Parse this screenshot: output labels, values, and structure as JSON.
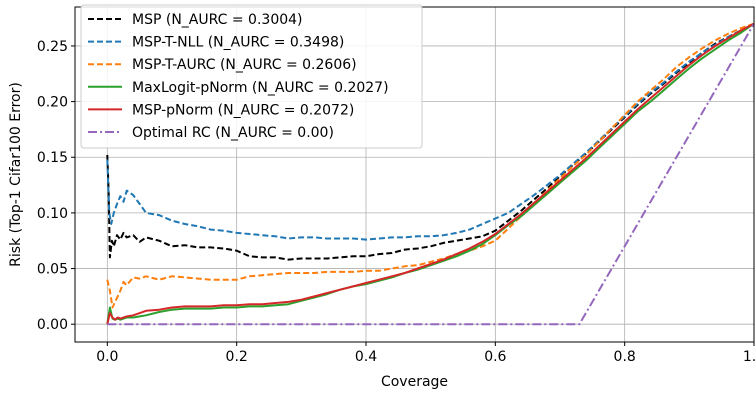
{
  "chart_data": {
    "type": "line",
    "title": "",
    "xlabel": "Coverage",
    "ylabel": "Risk (Top-1 Cifar100 Error)",
    "xlim": [
      -0.05,
      1.0
    ],
    "ylim": [
      -0.016,
      0.285
    ],
    "xticks": [
      0.0,
      0.2,
      0.4,
      0.6,
      0.8,
      1.0
    ],
    "xtick_labels": [
      "0.0",
      "0.2",
      "0.4",
      "0.6",
      "0.8",
      "1.0"
    ],
    "yticks": [
      0.0,
      0.05,
      0.1,
      0.15,
      0.2,
      0.25
    ],
    "ytick_labels": [
      "0.00",
      "0.05",
      "0.10",
      "0.15",
      "0.20",
      "0.25"
    ],
    "grid": true,
    "legend_position": "top-left",
    "series": [
      {
        "name": "MSP (N_AURC = 0.3004)",
        "color": "#000000",
        "dash": "dashed",
        "points": [
          [
            0.0,
            0.152
          ],
          [
            0.002,
            0.12
          ],
          [
            0.004,
            0.06
          ],
          [
            0.007,
            0.075
          ],
          [
            0.01,
            0.07
          ],
          [
            0.015,
            0.08
          ],
          [
            0.02,
            0.076
          ],
          [
            0.025,
            0.082
          ],
          [
            0.03,
            0.078
          ],
          [
            0.04,
            0.08
          ],
          [
            0.05,
            0.074
          ],
          [
            0.06,
            0.078
          ],
          [
            0.08,
            0.075
          ],
          [
            0.1,
            0.07
          ],
          [
            0.12,
            0.071
          ],
          [
            0.14,
            0.069
          ],
          [
            0.16,
            0.069
          ],
          [
            0.18,
            0.068
          ],
          [
            0.2,
            0.066
          ],
          [
            0.22,
            0.061
          ],
          [
            0.24,
            0.06
          ],
          [
            0.26,
            0.06
          ],
          [
            0.28,
            0.058
          ],
          [
            0.3,
            0.059
          ],
          [
            0.32,
            0.059
          ],
          [
            0.34,
            0.059
          ],
          [
            0.36,
            0.06
          ],
          [
            0.38,
            0.061
          ],
          [
            0.4,
            0.061
          ],
          [
            0.42,
            0.063
          ],
          [
            0.44,
            0.064
          ],
          [
            0.46,
            0.067
          ],
          [
            0.48,
            0.068
          ],
          [
            0.5,
            0.07
          ],
          [
            0.52,
            0.073
          ],
          [
            0.54,
            0.075
          ],
          [
            0.56,
            0.077
          ],
          [
            0.58,
            0.079
          ],
          [
            0.6,
            0.084
          ],
          [
            0.62,
            0.093
          ],
          [
            0.64,
            0.102
          ],
          [
            0.66,
            0.112
          ],
          [
            0.68,
            0.122
          ],
          [
            0.7,
            0.133
          ],
          [
            0.72,
            0.143
          ],
          [
            0.74,
            0.153
          ],
          [
            0.76,
            0.164
          ],
          [
            0.78,
            0.175
          ],
          [
            0.8,
            0.186
          ],
          [
            0.82,
            0.197
          ],
          [
            0.84,
            0.207
          ],
          [
            0.86,
            0.216
          ],
          [
            0.88,
            0.226
          ],
          [
            0.9,
            0.235
          ],
          [
            0.92,
            0.244
          ],
          [
            0.94,
            0.252
          ],
          [
            0.96,
            0.258
          ],
          [
            0.98,
            0.264
          ],
          [
            1.0,
            0.27
          ]
        ]
      },
      {
        "name": "MSP-T-NLL (N_AURC = 0.3498)",
        "color": "#1f77b4",
        "dash": "dashed",
        "points": [
          [
            0.0,
            0.148
          ],
          [
            0.003,
            0.1
          ],
          [
            0.006,
            0.09
          ],
          [
            0.01,
            0.1
          ],
          [
            0.015,
            0.108
          ],
          [
            0.02,
            0.115
          ],
          [
            0.025,
            0.11
          ],
          [
            0.03,
            0.12
          ],
          [
            0.04,
            0.116
          ],
          [
            0.05,
            0.108
          ],
          [
            0.06,
            0.1
          ],
          [
            0.08,
            0.098
          ],
          [
            0.1,
            0.093
          ],
          [
            0.12,
            0.09
          ],
          [
            0.14,
            0.088
          ],
          [
            0.16,
            0.085
          ],
          [
            0.18,
            0.084
          ],
          [
            0.2,
            0.082
          ],
          [
            0.22,
            0.081
          ],
          [
            0.24,
            0.08
          ],
          [
            0.26,
            0.079
          ],
          [
            0.28,
            0.077
          ],
          [
            0.3,
            0.078
          ],
          [
            0.32,
            0.078
          ],
          [
            0.34,
            0.077
          ],
          [
            0.36,
            0.077
          ],
          [
            0.38,
            0.077
          ],
          [
            0.4,
            0.076
          ],
          [
            0.42,
            0.077
          ],
          [
            0.44,
            0.078
          ],
          [
            0.46,
            0.078
          ],
          [
            0.48,
            0.079
          ],
          [
            0.5,
            0.079
          ],
          [
            0.52,
            0.08
          ],
          [
            0.54,
            0.082
          ],
          [
            0.56,
            0.085
          ],
          [
            0.58,
            0.09
          ],
          [
            0.6,
            0.095
          ],
          [
            0.62,
            0.1
          ],
          [
            0.64,
            0.108
          ],
          [
            0.66,
            0.116
          ],
          [
            0.68,
            0.125
          ],
          [
            0.7,
            0.134
          ],
          [
            0.72,
            0.144
          ],
          [
            0.74,
            0.154
          ],
          [
            0.76,
            0.165
          ],
          [
            0.78,
            0.176
          ],
          [
            0.8,
            0.187
          ],
          [
            0.82,
            0.198
          ],
          [
            0.84,
            0.208
          ],
          [
            0.86,
            0.217
          ],
          [
            0.88,
            0.227
          ],
          [
            0.9,
            0.236
          ],
          [
            0.92,
            0.244
          ],
          [
            0.94,
            0.251
          ],
          [
            0.96,
            0.258
          ],
          [
            0.98,
            0.264
          ],
          [
            1.0,
            0.27
          ]
        ]
      },
      {
        "name": "MSP-T-AURC (N_AURC = 0.2606)",
        "color": "#ff7f0e",
        "dash": "dashed",
        "points": [
          [
            0.0,
            0.04
          ],
          [
            0.004,
            0.03
          ],
          [
            0.008,
            0.015
          ],
          [
            0.012,
            0.02
          ],
          [
            0.016,
            0.025
          ],
          [
            0.02,
            0.03
          ],
          [
            0.025,
            0.038
          ],
          [
            0.03,
            0.035
          ],
          [
            0.04,
            0.042
          ],
          [
            0.05,
            0.041
          ],
          [
            0.06,
            0.043
          ],
          [
            0.08,
            0.04
          ],
          [
            0.1,
            0.043
          ],
          [
            0.12,
            0.042
          ],
          [
            0.14,
            0.041
          ],
          [
            0.16,
            0.04
          ],
          [
            0.18,
            0.04
          ],
          [
            0.2,
            0.04
          ],
          [
            0.22,
            0.043
          ],
          [
            0.24,
            0.044
          ],
          [
            0.26,
            0.045
          ],
          [
            0.28,
            0.046
          ],
          [
            0.3,
            0.046
          ],
          [
            0.32,
            0.046
          ],
          [
            0.34,
            0.047
          ],
          [
            0.36,
            0.047
          ],
          [
            0.38,
            0.047
          ],
          [
            0.4,
            0.048
          ],
          [
            0.42,
            0.048
          ],
          [
            0.44,
            0.05
          ],
          [
            0.46,
            0.052
          ],
          [
            0.48,
            0.053
          ],
          [
            0.5,
            0.056
          ],
          [
            0.52,
            0.059
          ],
          [
            0.54,
            0.063
          ],
          [
            0.56,
            0.066
          ],
          [
            0.58,
            0.07
          ],
          [
            0.6,
            0.075
          ],
          [
            0.62,
            0.086
          ],
          [
            0.64,
            0.097
          ],
          [
            0.66,
            0.108
          ],
          [
            0.68,
            0.12
          ],
          [
            0.7,
            0.131
          ],
          [
            0.72,
            0.142
          ],
          [
            0.74,
            0.152
          ],
          [
            0.76,
            0.164
          ],
          [
            0.78,
            0.176
          ],
          [
            0.8,
            0.188
          ],
          [
            0.82,
            0.2
          ],
          [
            0.84,
            0.21
          ],
          [
            0.86,
            0.22
          ],
          [
            0.88,
            0.231
          ],
          [
            0.9,
            0.24
          ],
          [
            0.92,
            0.248
          ],
          [
            0.94,
            0.255
          ],
          [
            0.96,
            0.261
          ],
          [
            0.98,
            0.266
          ],
          [
            1.0,
            0.27
          ]
        ]
      },
      {
        "name": "MaxLogit-pNorm (N_AURC = 0.2027)",
        "color": "#2ca02c",
        "dash": "solid",
        "points": [
          [
            0.0,
            0.0
          ],
          [
            0.004,
            0.015
          ],
          [
            0.008,
            0.005
          ],
          [
            0.012,
            0.004
          ],
          [
            0.016,
            0.005
          ],
          [
            0.02,
            0.004
          ],
          [
            0.03,
            0.006
          ],
          [
            0.04,
            0.006
          ],
          [
            0.05,
            0.007
          ],
          [
            0.06,
            0.008
          ],
          [
            0.08,
            0.011
          ],
          [
            0.1,
            0.013
          ],
          [
            0.12,
            0.014
          ],
          [
            0.14,
            0.014
          ],
          [
            0.16,
            0.014
          ],
          [
            0.18,
            0.015
          ],
          [
            0.2,
            0.015
          ],
          [
            0.22,
            0.016
          ],
          [
            0.24,
            0.016
          ],
          [
            0.26,
            0.017
          ],
          [
            0.28,
            0.018
          ],
          [
            0.3,
            0.021
          ],
          [
            0.32,
            0.024
          ],
          [
            0.34,
            0.027
          ],
          [
            0.36,
            0.031
          ],
          [
            0.38,
            0.034
          ],
          [
            0.4,
            0.036
          ],
          [
            0.42,
            0.039
          ],
          [
            0.44,
            0.042
          ],
          [
            0.46,
            0.046
          ],
          [
            0.48,
            0.049
          ],
          [
            0.5,
            0.053
          ],
          [
            0.52,
            0.057
          ],
          [
            0.54,
            0.061
          ],
          [
            0.56,
            0.066
          ],
          [
            0.58,
            0.072
          ],
          [
            0.6,
            0.08
          ],
          [
            0.62,
            0.089
          ],
          [
            0.64,
            0.097
          ],
          [
            0.66,
            0.107
          ],
          [
            0.68,
            0.117
          ],
          [
            0.7,
            0.127
          ],
          [
            0.72,
            0.137
          ],
          [
            0.74,
            0.147
          ],
          [
            0.76,
            0.158
          ],
          [
            0.78,
            0.169
          ],
          [
            0.8,
            0.18
          ],
          [
            0.82,
            0.191
          ],
          [
            0.84,
            0.2
          ],
          [
            0.86,
            0.21
          ],
          [
            0.88,
            0.22
          ],
          [
            0.9,
            0.23
          ],
          [
            0.92,
            0.239
          ],
          [
            0.94,
            0.247
          ],
          [
            0.96,
            0.255
          ],
          [
            0.98,
            0.262
          ],
          [
            1.0,
            0.27
          ]
        ]
      },
      {
        "name": "MSP-pNorm (N_AURC = 0.2072)",
        "color": "#d62728",
        "dash": "solid",
        "points": [
          [
            0.0,
            0.0
          ],
          [
            0.004,
            0.01
          ],
          [
            0.008,
            0.006
          ],
          [
            0.012,
            0.004
          ],
          [
            0.016,
            0.006
          ],
          [
            0.02,
            0.005
          ],
          [
            0.03,
            0.007
          ],
          [
            0.04,
            0.008
          ],
          [
            0.05,
            0.01
          ],
          [
            0.06,
            0.012
          ],
          [
            0.08,
            0.013
          ],
          [
            0.1,
            0.015
          ],
          [
            0.12,
            0.016
          ],
          [
            0.14,
            0.016
          ],
          [
            0.16,
            0.016
          ],
          [
            0.18,
            0.017
          ],
          [
            0.2,
            0.017
          ],
          [
            0.22,
            0.018
          ],
          [
            0.24,
            0.018
          ],
          [
            0.26,
            0.019
          ],
          [
            0.28,
            0.02
          ],
          [
            0.3,
            0.022
          ],
          [
            0.32,
            0.025
          ],
          [
            0.34,
            0.028
          ],
          [
            0.36,
            0.031
          ],
          [
            0.38,
            0.034
          ],
          [
            0.4,
            0.037
          ],
          [
            0.42,
            0.04
          ],
          [
            0.44,
            0.043
          ],
          [
            0.46,
            0.046
          ],
          [
            0.48,
            0.05
          ],
          [
            0.5,
            0.054
          ],
          [
            0.52,
            0.058
          ],
          [
            0.54,
            0.063
          ],
          [
            0.56,
            0.068
          ],
          [
            0.58,
            0.074
          ],
          [
            0.6,
            0.081
          ],
          [
            0.62,
            0.09
          ],
          [
            0.64,
            0.099
          ],
          [
            0.66,
            0.109
          ],
          [
            0.68,
            0.119
          ],
          [
            0.7,
            0.129
          ],
          [
            0.72,
            0.139
          ],
          [
            0.74,
            0.149
          ],
          [
            0.76,
            0.16
          ],
          [
            0.78,
            0.171
          ],
          [
            0.8,
            0.182
          ],
          [
            0.82,
            0.193
          ],
          [
            0.84,
            0.203
          ],
          [
            0.86,
            0.213
          ],
          [
            0.88,
            0.223
          ],
          [
            0.9,
            0.233
          ],
          [
            0.92,
            0.242
          ],
          [
            0.94,
            0.25
          ],
          [
            0.96,
            0.257
          ],
          [
            0.98,
            0.264
          ],
          [
            1.0,
            0.27
          ]
        ]
      },
      {
        "name": "Optimal RC (N_AURC = 0.00)",
        "color": "#9467bd",
        "dash": "dashdot",
        "points": [
          [
            0.0,
            0.0
          ],
          [
            0.73,
            0.0
          ],
          [
            1.0,
            0.27
          ]
        ]
      }
    ]
  }
}
